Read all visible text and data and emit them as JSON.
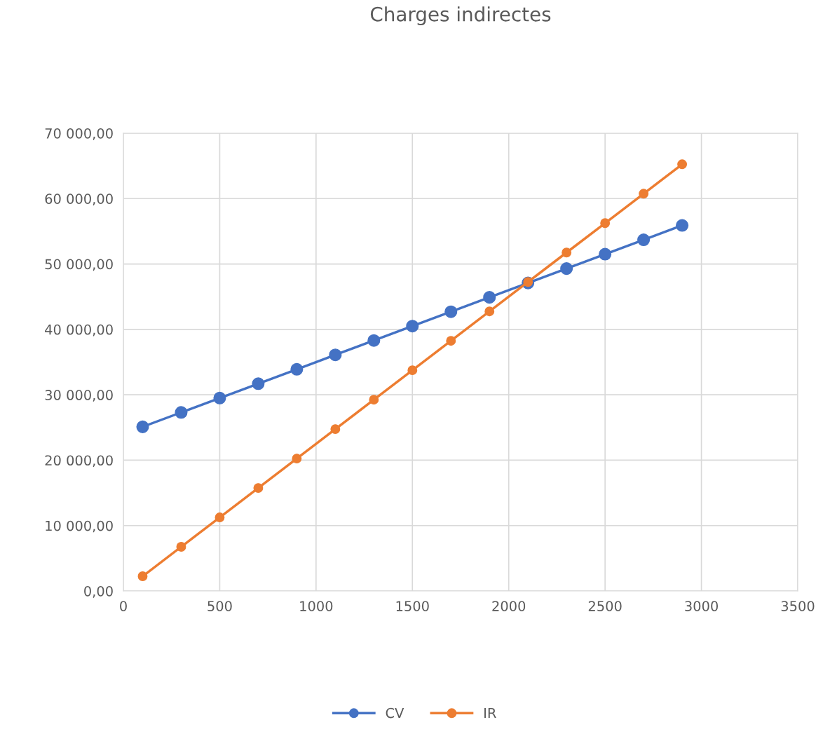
{
  "chart_data": {
    "type": "line",
    "title": "Charges indirectes",
    "x": [
      100,
      300,
      500,
      700,
      900,
      1100,
      1300,
      1500,
      1700,
      1900,
      2100,
      2300,
      2500,
      2700,
      2900
    ],
    "series": [
      {
        "name": "CV",
        "color": "#4472c4",
        "values": [
          25100,
          27300,
          29500,
          31700,
          33900,
          36100,
          38300,
          40500,
          42700,
          44900,
          47100,
          49300,
          51500,
          53700,
          55900
        ]
      },
      {
        "name": "IR",
        "color": "#ed7d31",
        "values": [
          2250,
          6750,
          11250,
          15750,
          20250,
          24750,
          29250,
          33750,
          38250,
          42750,
          47250,
          51750,
          56250,
          60750,
          65250
        ]
      }
    ],
    "xlim": [
      0,
      3500
    ],
    "xticks": [
      0,
      500,
      1000,
      1500,
      2000,
      2500,
      3000,
      3500
    ],
    "ylim": [
      0,
      70000
    ],
    "yticks": [
      {
        "value": 0,
        "label": "0,00"
      },
      {
        "value": 10000,
        "label": "10 000,00"
      },
      {
        "value": 20000,
        "label": "20 000,00"
      },
      {
        "value": 30000,
        "label": "30 000,00"
      },
      {
        "value": 40000,
        "label": "40 000,00"
      },
      {
        "value": 50000,
        "label": "50 000,00"
      },
      {
        "value": 60000,
        "label": "60 000,00"
      },
      {
        "value": 70000,
        "label": "70 000,00"
      }
    ],
    "grid": true,
    "legend": "bottom",
    "marker": "circle",
    "line_style": "solid"
  }
}
